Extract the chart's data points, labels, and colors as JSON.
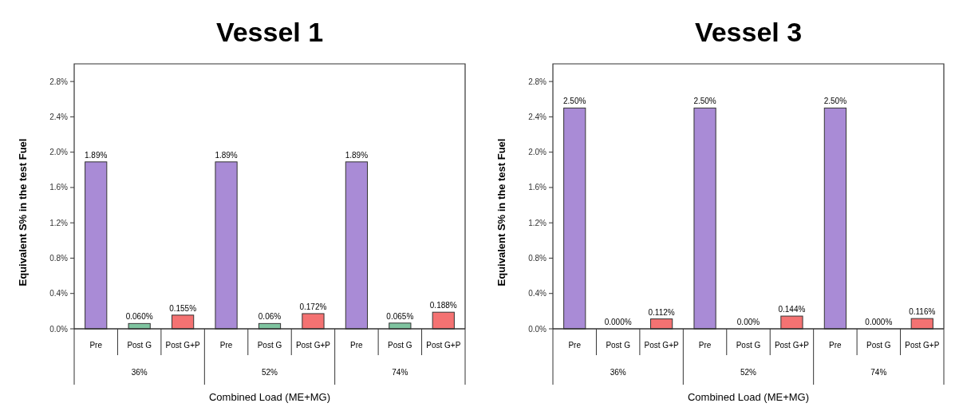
{
  "chart_data": [
    {
      "type": "bar",
      "title": "Vessel 1",
      "xlabel": "Combined Load (ME+MG)",
      "ylabel": "Equivalent S% in the test Fuel",
      "categories": [
        "Pre",
        "Post G",
        "Post G+P",
        "Pre",
        "Post G",
        "Post G+P",
        "Pre",
        "Post G",
        "Post G+P"
      ],
      "values": [
        1.89,
        0.06,
        0.155,
        1.89,
        0.06,
        0.172,
        1.89,
        0.065,
        0.188
      ],
      "value_labels": [
        "1.89%",
        "0.060%",
        "0.155%",
        "1.89%",
        "0.06%",
        "0.172%",
        "1.89%",
        "0.065%",
        "0.188%"
      ],
      "colors": [
        "#a98bd6",
        "#7fc4a0",
        "#f47272",
        "#a98bd6",
        "#7fc4a0",
        "#f47272",
        "#a98bd6",
        "#7fc4a0",
        "#f47272"
      ],
      "ylim": [
        0,
        3.0
      ],
      "yticks": [
        {
          "value": 0,
          "label": "0.0%"
        },
        {
          "value": 0.4,
          "label": "0.4%"
        },
        {
          "value": 0.8,
          "label": "0.8%"
        },
        {
          "value": 1.2,
          "label": "1.2%"
        },
        {
          "value": 1.6,
          "label": "1.6%"
        },
        {
          "value": 2.0,
          "label": "2.0%"
        },
        {
          "value": 2.4,
          "label": "2.4%"
        },
        {
          "value": 2.8,
          "label": "2.8%"
        }
      ],
      "annotations": [
        "36%",
        "52%",
        "74%"
      ]
    },
    {
      "type": "bar",
      "title": "Vessel 3",
      "xlabel": "Combined Load (ME+MG)",
      "ylabel": "Equivalent S% in the test Fuel",
      "categories": [
        "Pre",
        "Post G",
        "Post G+P",
        "Pre",
        "Post G",
        "Post G+P",
        "Pre",
        "Post G",
        "Post G+P"
      ],
      "values": [
        2.5,
        0.0,
        0.112,
        2.5,
        0.0,
        0.144,
        2.5,
        0.0,
        0.116
      ],
      "value_labels": [
        "2.50%",
        "0.000%",
        "0.112%",
        "2.50%",
        "0.00%",
        "0.144%",
        "2.50%",
        "0.000%",
        "0.116%"
      ],
      "colors": [
        "#a98bd6",
        "#7fc4a0",
        "#f47272",
        "#a98bd6",
        "#7fc4a0",
        "#f47272",
        "#a98bd6",
        "#7fc4a0",
        "#f47272"
      ],
      "ylim": [
        0,
        3.0
      ],
      "yticks": [
        {
          "value": 0,
          "label": "0.0%"
        },
        {
          "value": 0.4,
          "label": "0.4%"
        },
        {
          "value": 0.8,
          "label": "0.8%"
        },
        {
          "value": 1.2,
          "label": "1.2%"
        },
        {
          "value": 1.6,
          "label": "1.6%"
        },
        {
          "value": 2.0,
          "label": "2.0%"
        },
        {
          "value": 2.4,
          "label": "2.4%"
        },
        {
          "value": 2.8,
          "label": "2.8%"
        }
      ],
      "annotations": [
        "36%",
        "52%",
        "74%"
      ]
    }
  ]
}
